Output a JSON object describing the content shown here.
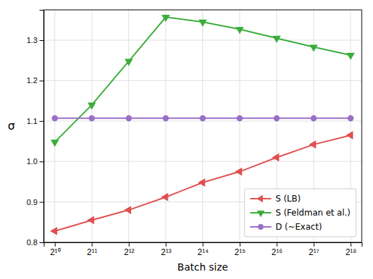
{
  "chart_data": {
    "type": "line",
    "xlabel": "Batch size",
    "ylabel": "σ",
    "categories": [
      "2¹⁰",
      "2¹¹",
      "2¹²",
      "2¹³",
      "2¹⁴",
      "2¹⁵",
      "2¹⁶",
      "2¹⁷",
      "2¹⁸"
    ],
    "series": [
      {
        "name": "S (LB)",
        "color": "#e05050",
        "marker": "triangle-left",
        "values": [
          0.828,
          0.855,
          0.88,
          0.912,
          0.948,
          0.975,
          1.01,
          1.042,
          1.065
        ]
      },
      {
        "name": "S (Feldman et al.)",
        "color": "#3aad3a",
        "marker": "triangle-down",
        "values": [
          1.048,
          1.14,
          1.248,
          1.357,
          1.345,
          1.327,
          1.305,
          1.283,
          1.263
        ]
      },
      {
        "name": "D (~Exact)",
        "color": "#9b6ec8",
        "marker": "circle",
        "values": [
          1.107,
          1.107,
          1.107,
          1.107,
          1.107,
          1.107,
          1.107,
          1.107,
          1.107
        ]
      }
    ],
    "ylim": [
      0.8,
      1.375
    ],
    "yticks": [
      0.8,
      0.9,
      {
        "value": 1.0,
        "label": "1.0"
      },
      1.1,
      1.2,
      1.3
    ],
    "grid": true,
    "legend": "lower right"
  }
}
